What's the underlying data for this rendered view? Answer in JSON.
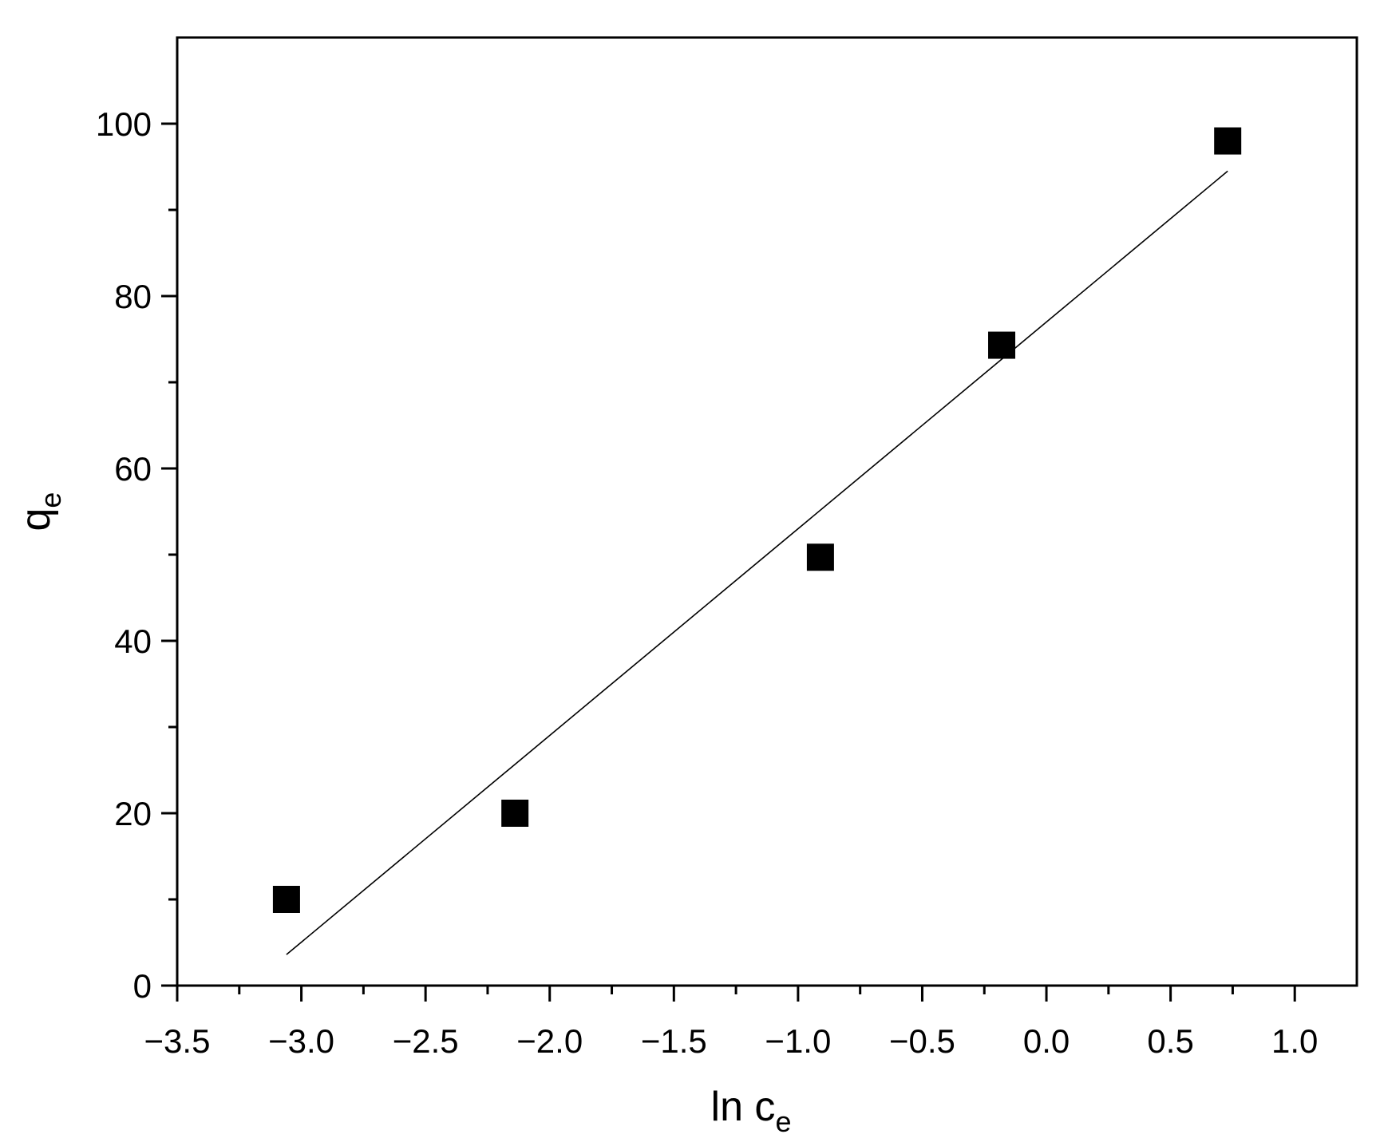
{
  "chart_data": {
    "type": "scatter",
    "title": "",
    "xlabel": {
      "main": "ln c",
      "sub": "e"
    },
    "ylabel": {
      "main": "q",
      "sub": "e"
    },
    "xlim": [
      -3.5,
      1.25
    ],
    "ylim": [
      0,
      110
    ],
    "x_ticks": [
      -3.5,
      -3.0,
      -2.5,
      -2.0,
      -1.5,
      -1.0,
      -0.5,
      0.0,
      0.5,
      1.0
    ],
    "x_tick_labels": [
      "−3.5",
      "−3.0",
      "−2.5",
      "−2.0",
      "−1.5",
      "−1.0",
      "−0.5",
      "0.0",
      "0.5",
      "1.0"
    ],
    "x_minor_ticks": [
      -3.25,
      -2.75,
      -2.25,
      -1.75,
      -1.25,
      -0.75,
      -0.25,
      0.25,
      0.75
    ],
    "y_ticks": [
      0,
      20,
      40,
      60,
      80,
      100
    ],
    "y_tick_labels": [
      "0",
      "20",
      "40",
      "60",
      "80",
      "100"
    ],
    "y_minor_ticks": [
      10,
      30,
      50,
      70,
      90
    ],
    "grid": false,
    "legend": "none",
    "series": [
      {
        "marker": "square",
        "color": "#000000",
        "points": [
          {
            "x": -3.06,
            "y": 10.0
          },
          {
            "x": -2.14,
            "y": 20.0
          },
          {
            "x": -0.91,
            "y": 49.7
          },
          {
            "x": -0.18,
            "y": 74.3
          },
          {
            "x": 0.73,
            "y": 98.0
          }
        ]
      }
    ],
    "fit_line": {
      "color": "#000000",
      "start": {
        "x": -3.06,
        "y": 3.6
      },
      "end": {
        "x": 0.73,
        "y": 94.5
      }
    }
  }
}
